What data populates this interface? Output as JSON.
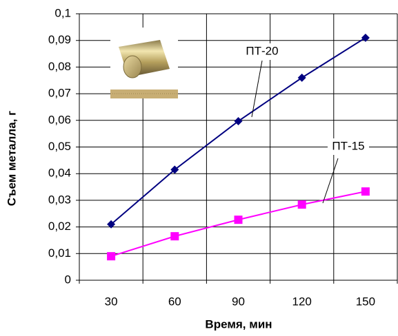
{
  "chart_data": {
    "type": "line",
    "x_label": "Время, мин",
    "y_label": "Съем металла, г",
    "categories": [
      30,
      60,
      90,
      120,
      150
    ],
    "series": [
      {
        "name": "ПТ-20",
        "color": "#000080",
        "marker": "diamond",
        "values": [
          0.021,
          0.0415,
          0.0597,
          0.076,
          0.091
        ]
      },
      {
        "name": "ПТ-15",
        "color": "#ff00ff",
        "marker": "square",
        "values": [
          0.009,
          0.0165,
          0.0227,
          0.0284,
          0.0333
        ]
      }
    ],
    "ylim": [
      0,
      0.1
    ],
    "yticks": [
      0,
      {
        "value": 0.01,
        "label": "0,01"
      },
      {
        "value": 0.02,
        "label": "0,02"
      },
      {
        "value": 0.03,
        "label": "0,03"
      },
      {
        "value": 0.04,
        "label": "0,04"
      },
      {
        "value": 0.05,
        "label": "0,05"
      },
      {
        "value": 0.06,
        "label": "0,06"
      },
      {
        "value": 0.07,
        "label": "0,07"
      },
      {
        "value": 0.08,
        "label": "0,08"
      },
      {
        "value": 0.09,
        "label": "0,09"
      },
      {
        "value": 0.1,
        "label": "0,1"
      }
    ],
    "grid": true
  }
}
